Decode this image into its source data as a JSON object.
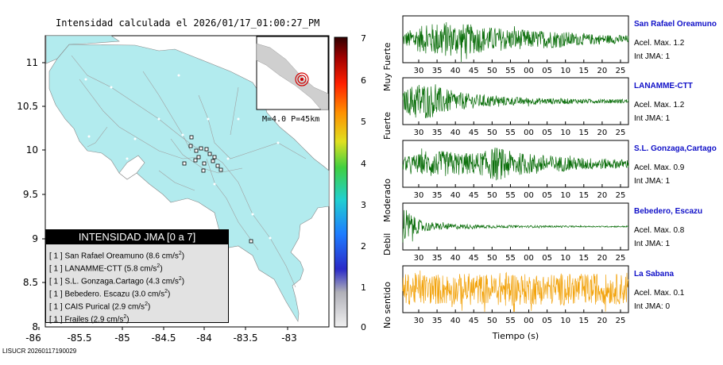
{
  "header": {
    "title": "Intensidad calculada el 2026/01/17_01:00:27_PM"
  },
  "footer": {
    "id": "LISUCR 20260117190029"
  },
  "map": {
    "lon_ticks": [
      "-86",
      "-85.5",
      "-85",
      "-84.5",
      "-84",
      "-83.5",
      "-83"
    ],
    "lat_ticks": [
      "11",
      "10.5",
      "10",
      "9.5",
      "9",
      "8.5",
      "8"
    ],
    "land_color": "#b2ebee",
    "inset": {
      "caption": "M=4.0 P=45km"
    }
  },
  "legend": {
    "title": "INTENSIDAD JMA [0 a 7]",
    "rows": [
      {
        "level": "[ 1 ]",
        "name": "San Rafael Oreamuno",
        "value": "(8.6 cm/s",
        "sup": "2",
        "close": ")"
      },
      {
        "level": "[ 1 ]",
        "name": "LANAMME-CTT",
        "value": "(5.8 cm/s",
        "sup": "2",
        "close": ")"
      },
      {
        "level": "[ 1 ]",
        "name": "S.L. Gonzaga.Cartago",
        "value": "(4.3 cm/s",
        "sup": "2",
        "close": ")"
      },
      {
        "level": "[ 1 ]",
        "name": "Bebedero. Escazu",
        "value": "(3.0 cm/s",
        "sup": "2",
        "close": ")"
      },
      {
        "level": "[ 1 ]",
        "name": "CAIS Purical",
        "value": "(2.9 cm/s",
        "sup": "2",
        "close": ")"
      },
      {
        "level": "[ 1 ]",
        "name": "Frailes",
        "value": "(2.9 cm/s",
        "sup": "2",
        "close": ")"
      }
    ]
  },
  "colorbar": {
    "ticks": [
      "7",
      "6",
      "5",
      "4",
      "3",
      "2",
      "1",
      "0"
    ],
    "labels": [
      "Muy Fuerte",
      "Fuerte",
      "Moderado",
      "Debil",
      "No sentido"
    ]
  },
  "chart_data": [
    {
      "type": "line",
      "name": "San Rafael Oreamuno",
      "accel_label": "Acel. Max. 1.2",
      "jma_label": "Int JMA: 1",
      "color": "#0a6e0a",
      "x_ticks": [
        "30",
        "35",
        "40",
        "45",
        "50",
        "55",
        "00",
        "05",
        "10",
        "15",
        "20",
        "25"
      ],
      "envelope": [
        0.3,
        0.55,
        0.7,
        0.85,
        0.75,
        0.7,
        0.6,
        0.55,
        0.5,
        0.45,
        0.4,
        0.42,
        0.38,
        0.3,
        0.25,
        0.22,
        0.2,
        0.18
      ],
      "peak": 1.2
    },
    {
      "type": "line",
      "name": "LANAMME-CTT",
      "accel_label": "Acel. Max. 1.2",
      "jma_label": "Int JMA: 1",
      "color": "#0a6e0a",
      "x_ticks": [
        "30",
        "35",
        "40",
        "45",
        "50",
        "55",
        "00",
        "05",
        "10",
        "15",
        "20",
        "25"
      ],
      "envelope": [
        0.4,
        0.9,
        0.8,
        0.6,
        0.45,
        0.35,
        0.3,
        0.25,
        0.2,
        0.18,
        0.15,
        0.14,
        0.13,
        0.12,
        0.1,
        0.1,
        0.1,
        0.1
      ],
      "peak": 1.2
    },
    {
      "type": "line",
      "name": "S.L. Gonzaga,Cartago",
      "accel_label": "Acel. Max. 0.9",
      "jma_label": "Int JMA: 1",
      "color": "#0a6e0a",
      "x_ticks": [
        "30",
        "35",
        "40",
        "45",
        "50",
        "55",
        "00",
        "05",
        "10",
        "15",
        "20",
        "25"
      ],
      "envelope": [
        0.3,
        0.45,
        0.5,
        0.6,
        0.55,
        0.5,
        0.55,
        0.8,
        0.6,
        0.5,
        0.45,
        0.4,
        0.35,
        0.3,
        0.28,
        0.25,
        0.22,
        0.2
      ],
      "peak": 0.9
    },
    {
      "type": "line",
      "name": "Bebedero, Escazu",
      "accel_label": "Acel. Max. 0.8",
      "jma_label": "Int JMA: 1",
      "color": "#0a6e0a",
      "x_ticks": [
        "30",
        "35",
        "40",
        "45",
        "50",
        "55",
        "00",
        "05",
        "10",
        "15",
        "20",
        "25"
      ],
      "envelope": [
        1.0,
        0.35,
        0.2,
        0.15,
        0.12,
        0.1,
        0.08,
        0.07,
        0.06,
        0.05,
        0.05,
        0.04,
        0.04,
        0.03,
        0.03,
        0.03,
        0.03,
        0.03
      ],
      "peak": 0.8
    },
    {
      "type": "line",
      "name": "La Sabana",
      "accel_label": "Acel. Max. 0.1",
      "jma_label": "Int JMA: 0",
      "color": "#f2a20a",
      "x_ticks": [
        "30",
        "35",
        "40",
        "45",
        "50",
        "55",
        "00",
        "05",
        "10",
        "15",
        "20",
        "25"
      ],
      "envelope": [
        0.7,
        0.75,
        0.7,
        0.72,
        0.7,
        0.75,
        0.7,
        0.72,
        0.85,
        0.7,
        0.72,
        0.7,
        0.75,
        0.7,
        0.72,
        0.7,
        0.7,
        0.72
      ],
      "peak": 0.1
    }
  ],
  "xaxis": {
    "label": "Tiempo (s)"
  }
}
